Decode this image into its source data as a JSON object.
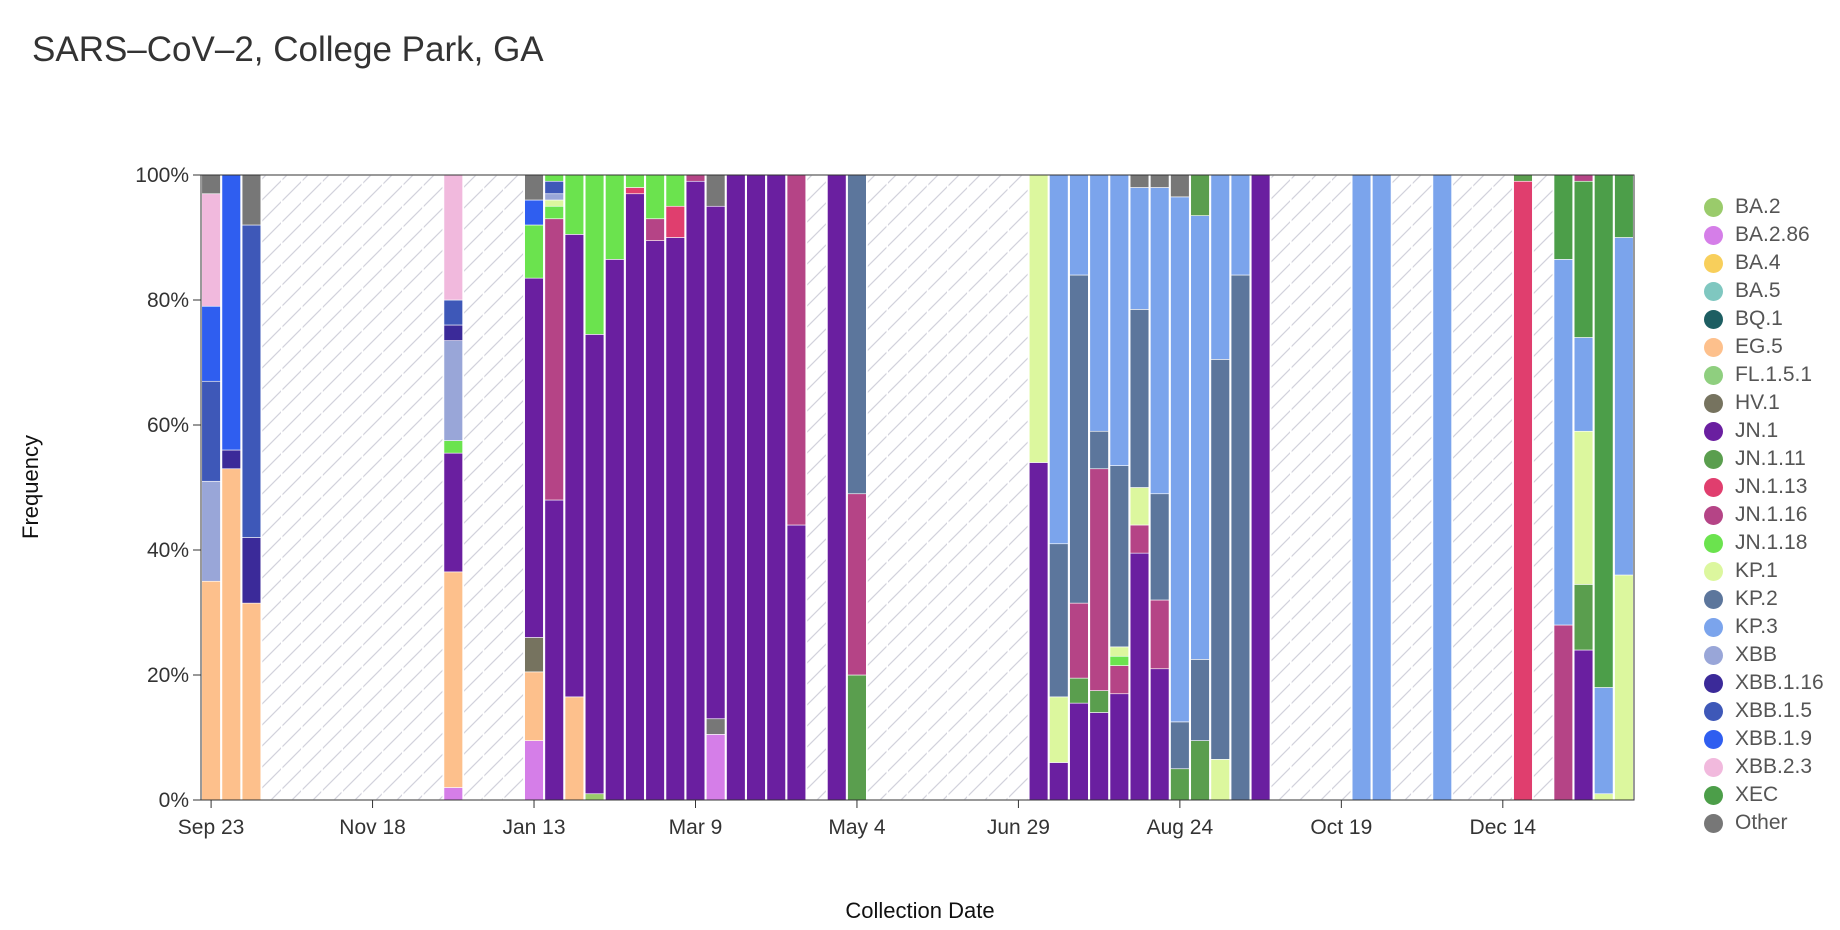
{
  "title": "SARS–CoV–2, College Park, GA",
  "chart_data": {
    "type": "bar",
    "stacked": true,
    "title": "SARS–CoV–2, College Park, GA",
    "xlabel": "Collection Date",
    "ylabel": "Frequency",
    "ylim": [
      0,
      1
    ],
    "y_ticks": [
      "0%",
      "20%",
      "40%",
      "60%",
      "80%",
      "100%"
    ],
    "x_ticks": [
      {
        "label": "Sep 23",
        "week": 0
      },
      {
        "label": "Nov 18",
        "week": 8
      },
      {
        "label": "Jan 13",
        "week": 16
      },
      {
        "label": "Mar 9",
        "week": 24
      },
      {
        "label": "May 4",
        "week": 32
      },
      {
        "label": "Jun 29",
        "week": 40
      },
      {
        "label": "Aug 24",
        "week": 48
      },
      {
        "label": "Oct 19",
        "week": 56
      },
      {
        "label": "Dec 14",
        "week": 64
      }
    ],
    "num_weeks": 71,
    "no_data_pattern": "diagonal-hatch",
    "colors": {
      "BA.2": "#9acb6b",
      "BA.2.86": "#d57ee8",
      "BA.4": "#f8cf5b",
      "BA.5": "#7fc7c0",
      "BQ.1": "#1d5e62",
      "EG.5": "#fdc08c",
      "FL.1.5.1": "#8fcf7f",
      "HV.1": "#76735f",
      "JN.1": "#6a1fa0",
      "JN.1.11": "#5a9e4e",
      "JN.1.13": "#e03e6e",
      "JN.1.16": "#b54486",
      "JN.1.18": "#6be34e",
      "KP.1": "#dcf79e",
      "KP.2": "#5c769c",
      "KP.3": "#7ba4ec",
      "XBB": "#99a6d8",
      "XBB.1.16": "#3b2a99",
      "XBB.1.5": "#3e58b8",
      "XBB.1.9": "#2f5ef0",
      "XBB.2.3": "#f1b9dd",
      "XEC": "#4c9e49",
      "Other": "#777777"
    },
    "legend": [
      "BA.2",
      "BA.2.86",
      "BA.4",
      "BA.5",
      "BQ.1",
      "EG.5",
      "FL.1.5.1",
      "HV.1",
      "JN.1",
      "JN.1.11",
      "JN.1.13",
      "JN.1.16",
      "JN.1.18",
      "KP.1",
      "KP.2",
      "KP.3",
      "XBB",
      "XBB.1.16",
      "XBB.1.5",
      "XBB.1.9",
      "XBB.2.3",
      "XEC",
      "Other"
    ],
    "bars": [
      {
        "week": 0,
        "segments": [
          [
            "EG.5",
            0.35
          ],
          [
            "XBB",
            0.16
          ],
          [
            "XBB.1.5",
            0.16
          ],
          [
            "XBB.1.9",
            0.12
          ],
          [
            "XBB.2.3",
            0.18
          ],
          [
            "Other",
            0.03
          ]
        ]
      },
      {
        "week": 1,
        "segments": [
          [
            "EG.5",
            0.53
          ],
          [
            "XBB.1.16",
            0.03
          ],
          [
            "XBB.1.9",
            0.44
          ]
        ]
      },
      {
        "week": 2,
        "segments": [
          [
            "EG.5",
            0.315
          ],
          [
            "XBB.1.16",
            0.105
          ],
          [
            "XBB.1.5",
            0.5
          ],
          [
            "Other",
            0.08
          ]
        ]
      },
      {
        "week": 12,
        "segments": [
          [
            "BA.2.86",
            0.02
          ],
          [
            "EG.5",
            0.345
          ],
          [
            "JN.1",
            0.19
          ],
          [
            "JN.1.18",
            0.02
          ],
          [
            "XBB",
            0.16
          ],
          [
            "XBB.1.16",
            0.025
          ],
          [
            "XBB.1.5",
            0.04
          ],
          [
            "XBB.2.3",
            0.2
          ]
        ]
      },
      {
        "week": 16,
        "segments": [
          [
            "BA.2.86",
            0.095
          ],
          [
            "EG.5",
            0.11
          ],
          [
            "HV.1",
            0.055
          ],
          [
            "JN.1",
            0.575
          ],
          [
            "JN.1.18",
            0.085
          ],
          [
            "XBB.1.9",
            0.04
          ],
          [
            "Other",
            0.04
          ]
        ]
      },
      {
        "week": 17,
        "segments": [
          [
            "JN.1",
            0.48
          ],
          [
            "JN.1.16",
            0.45
          ],
          [
            "JN.1.18",
            0.02
          ],
          [
            "KP.1",
            0.01
          ],
          [
            "XBB",
            0.01
          ],
          [
            "XBB.1.5",
            0.02
          ],
          [
            "JN.1.18",
            0.01
          ]
        ]
      },
      {
        "week": 18,
        "segments": [
          [
            "EG.5",
            0.165
          ],
          [
            "JN.1",
            0.74
          ],
          [
            "JN.1.18",
            0.095
          ]
        ]
      },
      {
        "week": 19,
        "segments": [
          [
            "BA.2",
            0.01
          ],
          [
            "JN.1",
            0.735
          ],
          [
            "JN.1.18",
            0.255
          ]
        ]
      },
      {
        "week": 20,
        "segments": [
          [
            "JN.1",
            0.865
          ],
          [
            "JN.1.18",
            0.135
          ]
        ]
      },
      {
        "week": 21,
        "segments": [
          [
            "JN.1",
            0.97
          ],
          [
            "JN.1.13",
            0.01
          ],
          [
            "JN.1.18",
            0.02
          ]
        ]
      },
      {
        "week": 22,
        "segments": [
          [
            "JN.1",
            0.895
          ],
          [
            "JN.1.16",
            0.035
          ],
          [
            "JN.1.18",
            0.07
          ]
        ]
      },
      {
        "week": 23,
        "segments": [
          [
            "JN.1",
            0.9
          ],
          [
            "JN.1.13",
            0.05
          ],
          [
            "JN.1.18",
            0.05
          ]
        ]
      },
      {
        "week": 24,
        "segments": [
          [
            "JN.1",
            0.99
          ],
          [
            "JN.1.16",
            0.01
          ]
        ]
      },
      {
        "week": 25,
        "segments": [
          [
            "BA.2.86",
            0.105
          ],
          [
            "Other",
            0.025
          ],
          [
            "JN.1",
            0.82
          ],
          [
            "Other",
            0.05
          ]
        ]
      },
      {
        "week": 26,
        "segments": [
          [
            "JN.1",
            1.0
          ]
        ]
      },
      {
        "week": 27,
        "segments": [
          [
            "JN.1",
            1.0
          ]
        ]
      },
      {
        "week": 28,
        "segments": [
          [
            "JN.1",
            1.0
          ]
        ]
      },
      {
        "week": 29,
        "segments": [
          [
            "JN.1",
            0.44
          ],
          [
            "JN.1.16",
            0.56
          ]
        ]
      },
      {
        "week": 31,
        "segments": [
          [
            "JN.1",
            1.0
          ]
        ]
      },
      {
        "week": 32,
        "segments": [
          [
            "JN.1.11",
            0.2
          ],
          [
            "JN.1.16",
            0.29
          ],
          [
            "KP.2",
            0.51
          ]
        ]
      },
      {
        "week": 41,
        "segments": [
          [
            "JN.1",
            0.54
          ],
          [
            "KP.1",
            0.46
          ]
        ]
      },
      {
        "week": 42,
        "segments": [
          [
            "JN.1",
            0.06
          ],
          [
            "KP.1",
            0.105
          ],
          [
            "KP.2",
            0.245
          ],
          [
            "KP.3",
            0.59
          ]
        ]
      },
      {
        "week": 43,
        "segments": [
          [
            "JN.1",
            0.155
          ],
          [
            "JN.1.11",
            0.04
          ],
          [
            "JN.1.16",
            0.12
          ],
          [
            "KP.2",
            0.525
          ],
          [
            "KP.3",
            0.16
          ]
        ]
      },
      {
        "week": 44,
        "segments": [
          [
            "JN.1",
            0.14
          ],
          [
            "JN.1.11",
            0.035
          ],
          [
            "JN.1.16",
            0.355
          ],
          [
            "KP.2",
            0.06
          ],
          [
            "KP.3",
            0.41
          ]
        ]
      },
      {
        "week": 45,
        "segments": [
          [
            "JN.1",
            0.17
          ],
          [
            "JN.1.16",
            0.045
          ],
          [
            "JN.1.18",
            0.015
          ],
          [
            "KP.1",
            0.015
          ],
          [
            "KP.2",
            0.29
          ],
          [
            "KP.3",
            0.465
          ]
        ]
      },
      {
        "week": 46,
        "segments": [
          [
            "JN.1",
            0.395
          ],
          [
            "JN.1.16",
            0.045
          ],
          [
            "KP.1",
            0.06
          ],
          [
            "KP.2",
            0.285
          ],
          [
            "KP.3",
            0.195
          ],
          [
            "Other",
            0.02
          ]
        ]
      },
      {
        "week": 47,
        "segments": [
          [
            "JN.1",
            0.21
          ],
          [
            "JN.1.16",
            0.11
          ],
          [
            "KP.2",
            0.17
          ],
          [
            "KP.3",
            0.49
          ],
          [
            "Other",
            0.02
          ]
        ]
      },
      {
        "week": 48,
        "segments": [
          [
            "JN.1.11",
            0.05
          ],
          [
            "KP.2",
            0.075
          ],
          [
            "KP.3",
            0.84
          ],
          [
            "Other",
            0.035
          ]
        ]
      },
      {
        "week": 49,
        "segments": [
          [
            "JN.1.11",
            0.095
          ],
          [
            "KP.2",
            0.13
          ],
          [
            "KP.3",
            0.71
          ],
          [
            "JN.1.11",
            0.065
          ]
        ]
      },
      {
        "week": 50,
        "segments": [
          [
            "KP.1",
            0.065
          ],
          [
            "KP.2",
            0.64
          ],
          [
            "KP.3",
            0.295
          ]
        ]
      },
      {
        "week": 51,
        "segments": [
          [
            "KP.2",
            0.84
          ],
          [
            "KP.3",
            0.16
          ]
        ]
      },
      {
        "week": 52,
        "segments": [
          [
            "JN.1",
            1.0
          ]
        ]
      },
      {
        "week": 57,
        "segments": [
          [
            "KP.3",
            1.0
          ]
        ]
      },
      {
        "week": 58,
        "segments": [
          [
            "KP.3",
            1.0
          ]
        ]
      },
      {
        "week": 61,
        "segments": [
          [
            "KP.3",
            1.0
          ]
        ]
      },
      {
        "week": 65,
        "segments": [
          [
            "JN.1.13",
            0.99
          ],
          [
            "JN.1.11",
            0.01
          ]
        ]
      },
      {
        "week": 67,
        "segments": [
          [
            "JN.1.16",
            0.28
          ],
          [
            "KP.3",
            0.585
          ],
          [
            "XEC",
            0.135
          ]
        ]
      },
      {
        "week": 68,
        "segments": [
          [
            "JN.1",
            0.24
          ],
          [
            "JN.1.11",
            0.105
          ],
          [
            "KP.1",
            0.245
          ],
          [
            "KP.3",
            0.15
          ],
          [
            "XEC",
            0.25
          ],
          [
            "JN.1.16",
            0.01
          ]
        ]
      },
      {
        "week": 69,
        "segments": [
          [
            "KP.1",
            0.01
          ],
          [
            "KP.3",
            0.17
          ],
          [
            "XEC",
            0.82
          ]
        ]
      },
      {
        "week": 70,
        "segments": [
          [
            "KP.1",
            0.36
          ],
          [
            "KP.3",
            0.54
          ],
          [
            "XEC",
            0.1
          ]
        ]
      }
    ]
  }
}
